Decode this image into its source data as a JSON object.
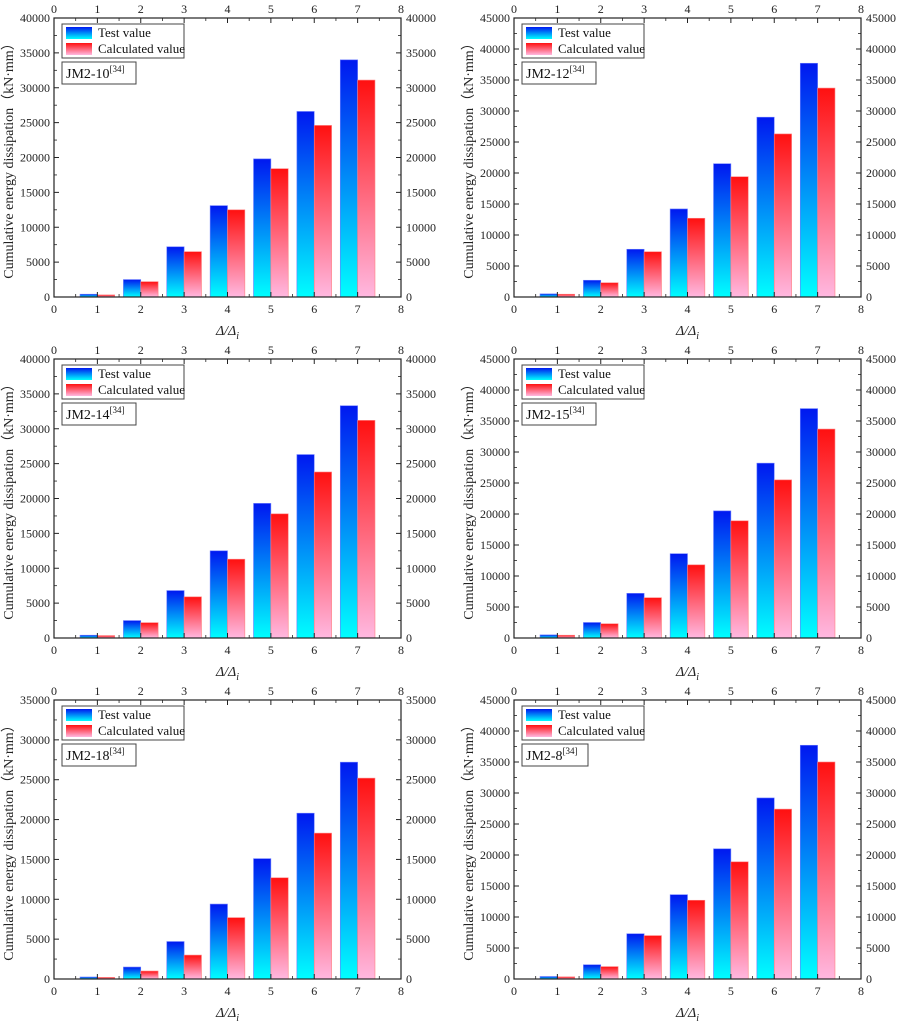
{
  "chart_data": [
    {
      "type": "bar",
      "title": "JM2-10",
      "specimen_label": "JM2-10",
      "reference": "[34]",
      "xlabel": "Δ/Δi",
      "ylabel": "Cumulative energy dissipation（kN·mm）",
      "categories": [
        1,
        2,
        3,
        4,
        5,
        6,
        7
      ],
      "xlim": [
        0,
        8
      ],
      "xticks": [
        0,
        1,
        2,
        3,
        4,
        5,
        6,
        7,
        8
      ],
      "ylim": [
        0,
        40000
      ],
      "yticks": [
        0,
        5000,
        10000,
        15000,
        20000,
        25000,
        30000,
        35000,
        40000
      ],
      "grid": false,
      "legend_position": "top-left",
      "series": [
        {
          "name": "Test value",
          "values": [
            400,
            2500,
            7200,
            13100,
            19800,
            26600,
            34000
          ]
        },
        {
          "name": "Calculated value",
          "values": [
            300,
            2200,
            6500,
            12500,
            18400,
            24600,
            31100
          ]
        }
      ]
    },
    {
      "type": "bar",
      "title": "JM2-12",
      "specimen_label": "JM2-12",
      "reference": "[34]",
      "xlabel": "Δ/Δi",
      "ylabel": "Cumulative energy dissipation（kN·mm）",
      "categories": [
        1,
        2,
        3,
        4,
        5,
        6,
        7
      ],
      "xlim": [
        0,
        8
      ],
      "xticks": [
        0,
        1,
        2,
        3,
        4,
        5,
        6,
        7,
        8
      ],
      "ylim": [
        0,
        45000
      ],
      "yticks": [
        0,
        5000,
        10000,
        15000,
        20000,
        25000,
        30000,
        35000,
        40000,
        45000
      ],
      "grid": false,
      "legend_position": "top-left",
      "series": [
        {
          "name": "Test value",
          "values": [
            500,
            2700,
            7700,
            14200,
            21500,
            29000,
            37700
          ]
        },
        {
          "name": "Calculated value",
          "values": [
            450,
            2300,
            7300,
            12700,
            19400,
            26300,
            33700
          ]
        }
      ]
    },
    {
      "type": "bar",
      "title": "JM2-14",
      "specimen_label": "JM2-14",
      "reference": "[34]",
      "xlabel": "Δ/Δi",
      "ylabel": "Cumulative energy dissipation（kN·mm）",
      "categories": [
        1,
        2,
        3,
        4,
        5,
        6,
        7
      ],
      "xlim": [
        0,
        8
      ],
      "xticks": [
        0,
        1,
        2,
        3,
        4,
        5,
        6,
        7,
        8
      ],
      "ylim": [
        0,
        40000
      ],
      "yticks": [
        0,
        5000,
        10000,
        15000,
        20000,
        25000,
        30000,
        35000,
        40000
      ],
      "grid": false,
      "legend_position": "top-left",
      "series": [
        {
          "name": "Test value",
          "values": [
            400,
            2500,
            6800,
            12500,
            19300,
            26300,
            33300
          ]
        },
        {
          "name": "Calculated value",
          "values": [
            350,
            2200,
            5900,
            11300,
            17800,
            23800,
            31200
          ]
        }
      ]
    },
    {
      "type": "bar",
      "title": "JM2-15",
      "specimen_label": "JM2-15",
      "reference": "[34]",
      "xlabel": "Δ/Δi",
      "ylabel": "Cumulative energy dissipation（kN·mm）",
      "categories": [
        1,
        2,
        3,
        4,
        5,
        6,
        7
      ],
      "xlim": [
        0,
        8
      ],
      "xticks": [
        0,
        1,
        2,
        3,
        4,
        5,
        6,
        7,
        8
      ],
      "ylim": [
        0,
        45000
      ],
      "yticks": [
        0,
        5000,
        10000,
        15000,
        20000,
        25000,
        30000,
        35000,
        40000,
        45000
      ],
      "grid": false,
      "legend_position": "top-left",
      "series": [
        {
          "name": "Test value",
          "values": [
            500,
            2500,
            7200,
            13600,
            20500,
            28200,
            37000
          ]
        },
        {
          "name": "Calculated value",
          "values": [
            450,
            2300,
            6500,
            11800,
            18900,
            25500,
            33700
          ]
        }
      ]
    },
    {
      "type": "bar",
      "title": "JM2-18",
      "specimen_label": "JM2-18",
      "reference": "[34]",
      "xlabel": "Δ/Δi",
      "ylabel": "Cumulative energy dissipation（kN·mm）",
      "categories": [
        1,
        2,
        3,
        4,
        5,
        6,
        7
      ],
      "xlim": [
        0,
        8
      ],
      "xticks": [
        0,
        1,
        2,
        3,
        4,
        5,
        6,
        7,
        8
      ],
      "ylim": [
        0,
        35000
      ],
      "yticks": [
        0,
        5000,
        10000,
        15000,
        20000,
        25000,
        30000,
        35000
      ],
      "grid": false,
      "legend_position": "top-left",
      "series": [
        {
          "name": "Test value",
          "values": [
            250,
            1500,
            4700,
            9400,
            15100,
            20800,
            27200
          ]
        },
        {
          "name": "Calculated value",
          "values": [
            200,
            1000,
            3000,
            7700,
            12700,
            18300,
            25200
          ]
        }
      ]
    },
    {
      "type": "bar",
      "title": "JM2-8",
      "specimen_label": "JM2-8",
      "reference": "[34]",
      "xlabel": "Δ/Δi",
      "ylabel": "Cumulative energy dissipation（kN·mm）",
      "categories": [
        1,
        2,
        3,
        4,
        5,
        6,
        7
      ],
      "xlim": [
        0,
        8
      ],
      "xticks": [
        0,
        1,
        2,
        3,
        4,
        5,
        6,
        7,
        8
      ],
      "ylim": [
        0,
        45000
      ],
      "yticks": [
        0,
        5000,
        10000,
        15000,
        20000,
        25000,
        30000,
        35000,
        40000,
        45000
      ],
      "grid": false,
      "legend_position": "top-left",
      "series": [
        {
          "name": "Test value",
          "values": [
            400,
            2300,
            7300,
            13600,
            21000,
            29200,
            37700
          ]
        },
        {
          "name": "Calculated value",
          "values": [
            350,
            2000,
            7000,
            12700,
            18900,
            27400,
            35000
          ]
        }
      ]
    }
  ],
  "legend": {
    "test_label": "Test value",
    "calc_label": "Calculated value"
  },
  "axis_labels": {
    "ylabel": "Cumulative energy dissipation（kN·mm）",
    "xlabel_main": "Δ/Δ",
    "xlabel_sub": "i"
  },
  "colors": {
    "test_top": "#0018f0",
    "test_bottom": "#00ffff",
    "calc_top": "#ff1010",
    "calc_bottom": "#ffb8e0",
    "axis": "#222222"
  }
}
